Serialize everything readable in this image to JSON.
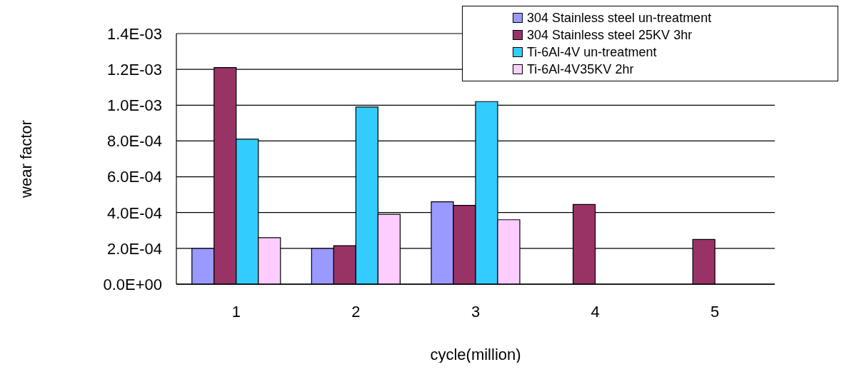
{
  "chart_data": {
    "type": "bar",
    "xlabel": "cycle(million)",
    "ylabel": "wear factor",
    "categories": [
      "1",
      "2",
      "3",
      "4",
      "5"
    ],
    "series": [
      {
        "name": "304 Stainless steel un-treatment",
        "color": "#9999ff",
        "values": [
          0.0002,
          0.0002,
          0.00046,
          null,
          null
        ]
      },
      {
        "name": "304 Stainless steel 25KV 3hr",
        "color": "#993366",
        "values": [
          0.00121,
          0.000215,
          0.00044,
          0.000445,
          0.00025
        ]
      },
      {
        "name": "Ti-6Al-4V un-treatment",
        "color": "#33ccff",
        "values": [
          0.00081,
          0.00099,
          0.00102,
          null,
          null
        ]
      },
      {
        "name": "Ti-6Al-4V35KV 2hr",
        "color": "#ffccff",
        "values": [
          0.00026,
          0.00039,
          0.00036,
          null,
          null
        ]
      }
    ],
    "ylim": [
      0,
      0.0014
    ],
    "yticks": [
      {
        "value": 0,
        "label": "0.0E+00"
      },
      {
        "value": 0.0002,
        "label": "2.0E-04"
      },
      {
        "value": 0.0004,
        "label": "4.0E-04"
      },
      {
        "value": 0.0006,
        "label": "6.0E-04"
      },
      {
        "value": 0.0008,
        "label": "8.0E-04"
      },
      {
        "value": 0.001,
        "label": "1.0E-03"
      },
      {
        "value": 0.0012,
        "label": "1.2E-03"
      },
      {
        "value": 0.0014,
        "label": "1.4E-03"
      }
    ],
    "grid": "y",
    "legend": "top right"
  }
}
